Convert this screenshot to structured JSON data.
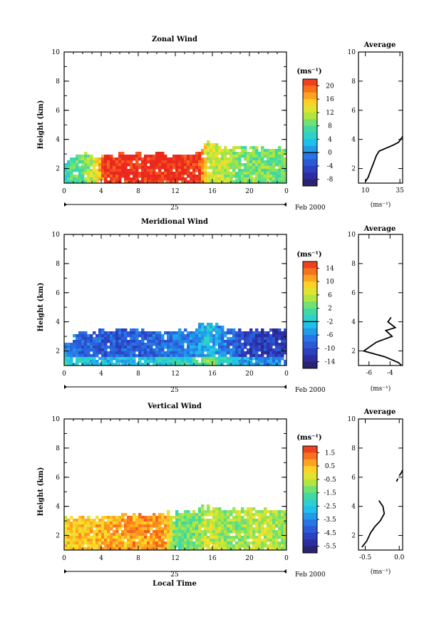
{
  "figure": {
    "colorbar_unit": "(ms⁻¹)",
    "avg_title": "Average",
    "avg_xlabel": "(ms⁻¹)",
    "date_label": "Feb 2000",
    "day_label": "25",
    "ylabel": "Height (km)",
    "xlabel": "Local Time",
    "time_ticks": [
      "0",
      "4",
      "8",
      "12",
      "16",
      "20",
      "0"
    ],
    "height_ticks": [
      "2",
      "4",
      "6",
      "8",
      "10"
    ]
  },
  "chart_data": [
    {
      "type": "heatmap",
      "title": "Zonal Wind",
      "xlabel": "",
      "ylabel": "Height (km)",
      "xlim": [
        0,
        24
      ],
      "ylim": [
        1,
        10
      ],
      "colorbar_unit": "(ms⁻¹)",
      "colorbar_ticks": [
        "20",
        "16",
        "12",
        "8",
        "4",
        "0",
        "-4",
        "-8"
      ],
      "colorbar_range": [
        -10,
        22
      ],
      "colorbar_line": 0,
      "field": {
        "top_height_by_time": [
          [
            0,
            2.3
          ],
          [
            1.5,
            3.0
          ],
          [
            3,
            3.0
          ],
          [
            4,
            2.8
          ],
          [
            5,
            3.0
          ],
          [
            10,
            3.0
          ],
          [
            14,
            2.9
          ],
          [
            14.8,
            3.3
          ],
          [
            15.4,
            4.0
          ],
          [
            17,
            3.5
          ],
          [
            20,
            3.5
          ],
          [
            24,
            3.4
          ]
        ],
        "value_by_time": [
          [
            0,
            6
          ],
          [
            2,
            9
          ],
          [
            3.5,
            13
          ],
          [
            4.5,
            22
          ],
          [
            14.5,
            22
          ],
          [
            15.5,
            12
          ],
          [
            17,
            12
          ],
          [
            19,
            9
          ],
          [
            24,
            9
          ]
        ]
      },
      "average_profile": {
        "x_ticks": [
          "10",
          "35"
        ],
        "xlim": [
          5,
          37
        ],
        "ylim": [
          1,
          10
        ],
        "y_ticks": [
          "2",
          "4",
          "6",
          "8",
          "10"
        ],
        "points": [
          [
            10,
            1.1
          ],
          [
            12,
            1.4
          ],
          [
            14,
            1.9
          ],
          [
            16,
            2.4
          ],
          [
            18,
            2.9
          ],
          [
            20,
            3.2
          ],
          [
            25,
            3.4
          ],
          [
            30,
            3.6
          ],
          [
            34,
            3.8
          ],
          [
            37,
            4.2
          ]
        ]
      }
    },
    {
      "type": "heatmap",
      "title": "Meridional Wind",
      "xlabel": "",
      "ylabel": "Height (km)",
      "xlim": [
        0,
        24
      ],
      "ylim": [
        1,
        10
      ],
      "colorbar_unit": "(ms⁻¹)",
      "colorbar_ticks": [
        "14",
        "10",
        "6",
        "2",
        "-2",
        "-6",
        "-10",
        "-14"
      ],
      "colorbar_range": [
        -16,
        16
      ],
      "colorbar_line": 0,
      "field": {
        "top_height_by_time": [
          [
            0,
            2.3
          ],
          [
            1.5,
            3.2
          ],
          [
            3,
            3.2
          ],
          [
            4,
            3.4
          ],
          [
            6,
            3.5
          ],
          [
            10,
            3.4
          ],
          [
            14,
            3.3
          ],
          [
            14.6,
            3.9
          ],
          [
            16.5,
            3.9
          ],
          [
            18,
            3.5
          ],
          [
            24,
            3.4
          ]
        ],
        "value_by_time": [
          [
            0,
            -6
          ],
          [
            2,
            -8
          ],
          [
            5,
            -9
          ],
          [
            10,
            -8
          ],
          [
            14,
            -6
          ],
          [
            15.5,
            -2
          ],
          [
            17,
            -6
          ],
          [
            20,
            -11
          ],
          [
            24,
            -12
          ]
        ]
      },
      "average_profile": {
        "x_ticks": [
          "-6",
          "-4"
        ],
        "xlim": [
          -7,
          -2.8
        ],
        "ylim": [
          1,
          10
        ],
        "y_ticks": [
          "2",
          "4",
          "6",
          "8",
          "10"
        ],
        "points": [
          [
            -3.9,
            4.3
          ],
          [
            -4.2,
            4.0
          ],
          [
            -3.5,
            3.6
          ],
          [
            -4.4,
            3.4
          ],
          [
            -3.8,
            3.0
          ],
          [
            -5.3,
            2.6
          ],
          [
            -6.5,
            2.0
          ],
          [
            -4.5,
            1.6
          ],
          [
            -3.2,
            1.2
          ],
          [
            -2.9,
            1.0
          ]
        ]
      }
    },
    {
      "type": "heatmap",
      "title": "Vertical Wind",
      "xlabel": "Local Time",
      "ylabel": "Height (km)",
      "xlim": [
        0,
        24
      ],
      "ylim": [
        1,
        10
      ],
      "colorbar_unit": "(ms⁻¹)",
      "colorbar_ticks": [
        "1.5",
        "0.5",
        "-0.5",
        "-1.5",
        "-2.5",
        "-3.5",
        "-4.5",
        "-5.5"
      ],
      "colorbar_range": [
        -6.5,
        2.3
      ],
      "colorbar_line": null,
      "field": {
        "top_height_by_time": [
          [
            0,
            3.3
          ],
          [
            4,
            3.3
          ],
          [
            10,
            3.5
          ],
          [
            14.5,
            3.6
          ],
          [
            15,
            4.0
          ],
          [
            17,
            3.8
          ],
          [
            24,
            3.8
          ]
        ],
        "value_by_time": [
          [
            0,
            0.3
          ],
          [
            4,
            0.6
          ],
          [
            8,
            1.0
          ],
          [
            11,
            0.9
          ],
          [
            12,
            -1.4
          ],
          [
            14,
            -1.3
          ],
          [
            15.5,
            -0.4
          ],
          [
            18,
            -1.0
          ],
          [
            21,
            -0.6
          ],
          [
            24,
            -0.8
          ]
        ]
      },
      "average_profile": {
        "x_ticks": [
          "-0.5",
          "0.0"
        ],
        "xlim": [
          -0.6,
          0.05
        ],
        "ylim": [
          1,
          10
        ],
        "y_ticks": [
          "2",
          "4",
          "6",
          "8",
          "10"
        ],
        "points": [
          [
            -0.55,
            1.2
          ],
          [
            -0.48,
            1.6
          ],
          [
            -0.42,
            2.2
          ],
          [
            -0.36,
            2.6
          ],
          [
            -0.28,
            3.0
          ],
          [
            -0.22,
            3.5
          ],
          [
            -0.24,
            4.0
          ],
          [
            -0.3,
            4.4
          ]
        ],
        "points_upper": [
          [
            -0.04,
            5.7
          ],
          [
            -0.02,
            5.9
          ]
        ],
        "points_upper2": [
          [
            0.0,
            6.1
          ],
          [
            0.03,
            6.3
          ],
          [
            0.05,
            6.5
          ]
        ]
      }
    }
  ]
}
